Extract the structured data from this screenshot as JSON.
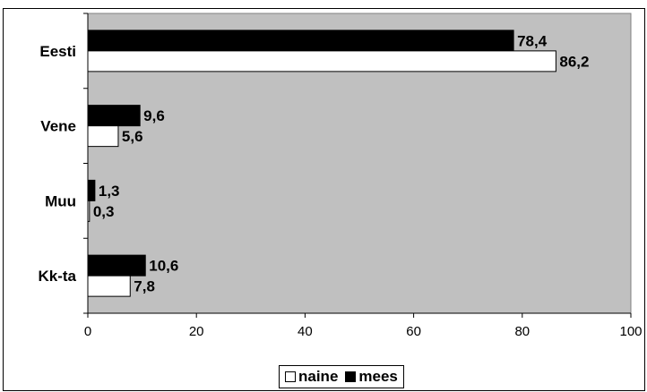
{
  "chart_data": {
    "type": "bar",
    "orientation": "horizontal",
    "categories": [
      "Eesti",
      "Vene",
      "Muu",
      "Kk-ta"
    ],
    "series": [
      {
        "name": "mees",
        "values": [
          78.4,
          9.6,
          1.3,
          10.6
        ],
        "labels": [
          "78,4",
          "9,6",
          "1,3",
          "10,6"
        ],
        "color": "#000000"
      },
      {
        "name": "naine",
        "values": [
          86.2,
          5.6,
          0.3,
          7.8
        ],
        "labels": [
          "86,2",
          "5,6",
          "0,3",
          "7,8"
        ],
        "color": "#ffffff"
      }
    ],
    "xticks": [
      0,
      20,
      40,
      60,
      80,
      100
    ],
    "xlim": [
      0,
      100
    ],
    "plot_background": "#c0c0c0",
    "grid": false,
    "legend_placement": "bottom",
    "legend_order": [
      "naine",
      "mees"
    ]
  }
}
